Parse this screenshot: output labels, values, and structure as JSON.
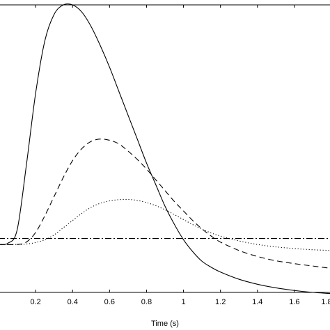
{
  "chart_data": {
    "type": "line",
    "title": "",
    "xlabel": "Time (s)",
    "ylabel": "",
    "xlim": [
      0,
      1.8
    ],
    "ylim": [
      -0.2,
      1.0
    ],
    "xticks": [
      0.2,
      0.4,
      0.6,
      0.8,
      1,
      1.2,
      1.4,
      1.6,
      1.8
    ],
    "xtick_labels": [
      "0.2",
      "0.4",
      "0.6",
      "0.8",
      "1",
      "1.2",
      "1.4",
      "1.6",
      "1.8"
    ],
    "grid": false,
    "legend": null,
    "series": [
      {
        "style": "solid",
        "x": [
          0,
          0.05,
          0.1,
          0.15,
          0.2,
          0.25,
          0.3,
          0.35,
          0.4,
          0.45,
          0.5,
          0.55,
          0.6,
          0.65,
          0.7,
          0.75,
          0.8,
          0.85,
          0.9,
          0.95,
          1.0,
          1.05,
          1.1,
          1.15,
          1.2,
          1.3,
          1.4,
          1.5,
          1.6,
          1.7,
          1.8
        ],
        "values": [
          0.0,
          0.005,
          0.06,
          0.33,
          0.63,
          0.85,
          0.96,
          1.0,
          1.0,
          0.97,
          0.91,
          0.83,
          0.74,
          0.64,
          0.54,
          0.44,
          0.34,
          0.25,
          0.16,
          0.085,
          0.02,
          -0.03,
          -0.07,
          -0.095,
          -0.115,
          -0.145,
          -0.166,
          -0.181,
          -0.192,
          -0.2,
          -0.205
        ]
      },
      {
        "style": "dashed",
        "x": [
          0,
          0.1,
          0.15,
          0.2,
          0.25,
          0.3,
          0.35,
          0.4,
          0.45,
          0.5,
          0.55,
          0.6,
          0.65,
          0.7,
          0.75,
          0.8,
          0.85,
          0.9,
          0.95,
          1.0,
          1.05,
          1.1,
          1.15,
          1.2,
          1.3,
          1.4,
          1.5,
          1.6,
          1.7,
          1.8
        ],
        "values": [
          0.0,
          0.0,
          0.01,
          0.05,
          0.12,
          0.2,
          0.28,
          0.35,
          0.4,
          0.43,
          0.44,
          0.435,
          0.42,
          0.39,
          0.355,
          0.315,
          0.27,
          0.225,
          0.18,
          0.14,
          0.1,
          0.065,
          0.035,
          0.01,
          -0.025,
          -0.05,
          -0.068,
          -0.08,
          -0.09,
          -0.1
        ]
      },
      {
        "style": "dotted",
        "x": [
          0,
          0.1,
          0.15,
          0.2,
          0.25,
          0.3,
          0.35,
          0.4,
          0.45,
          0.5,
          0.55,
          0.6,
          0.65,
          0.7,
          0.75,
          0.8,
          0.85,
          0.9,
          0.95,
          1.0,
          1.05,
          1.1,
          1.15,
          1.2,
          1.3,
          1.4,
          1.5,
          1.6,
          1.7,
          1.8
        ],
        "values": [
          0.0,
          0.0,
          0.002,
          0.008,
          0.02,
          0.04,
          0.07,
          0.1,
          0.13,
          0.155,
          0.172,
          0.182,
          0.187,
          0.188,
          0.184,
          0.175,
          0.162,
          0.145,
          0.125,
          0.104,
          0.083,
          0.064,
          0.048,
          0.035,
          0.015,
          0.0,
          -0.01,
          -0.017,
          -0.022,
          -0.025
        ]
      },
      {
        "style": "dashdot",
        "x": [
          0,
          1.8
        ],
        "values": [
          0.025,
          0.025
        ]
      }
    ]
  }
}
